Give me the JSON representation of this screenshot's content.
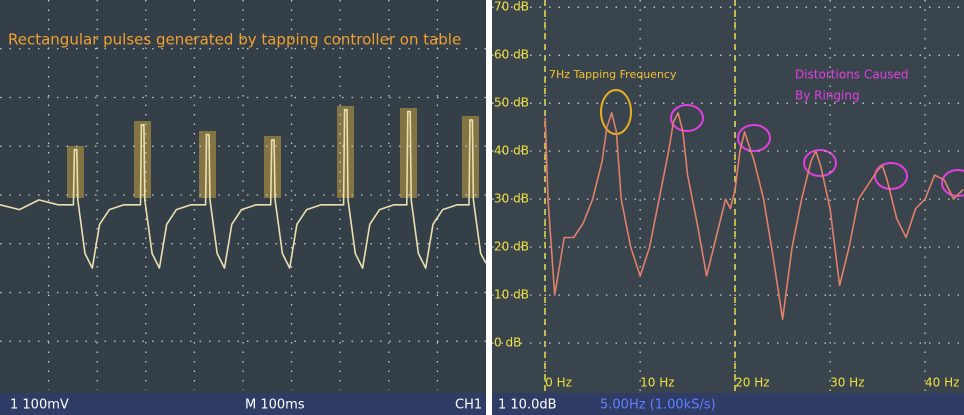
{
  "chart_data": [
    {
      "type": "line",
      "annotation": "Rectangular pulses generated by tapping controller on table",
      "footer": [
        "1  100mV",
        "M 100ms",
        "CH1"
      ],
      "xlim": [
        0,
        1000
      ],
      "ylim": [
        -400,
        400
      ],
      "series": [
        {
          "color": "#e8e0b0",
          "x": [
            0,
            40,
            80,
            120,
            151,
            153,
            158,
            160,
            175,
            190,
            205,
            225,
            255,
            289,
            291,
            296,
            298,
            313,
            328,
            343,
            363,
            393,
            423,
            425,
            430,
            432,
            447,
            462,
            477,
            497,
            527,
            557,
            559,
            564,
            566,
            581,
            596,
            611,
            631,
            661,
            707,
            709,
            714,
            716,
            731,
            746,
            761,
            781,
            811,
            837,
            839,
            844,
            846,
            861,
            876,
            891,
            911,
            941,
            965,
            967,
            972,
            974,
            989,
            1000
          ],
          "values": [
            -20,
            -30,
            -10,
            -20,
            -20,
            93,
            93,
            -10,
            -120,
            -150,
            -60,
            -30,
            -20,
            -20,
            144,
            144,
            -10,
            -120,
            -150,
            -60,
            -30,
            -20,
            -20,
            124,
            124,
            -10,
            -120,
            -150,
            -60,
            -30,
            -20,
            -20,
            113,
            113,
            -10,
            -120,
            -150,
            -60,
            -30,
            -20,
            -20,
            175,
            175,
            -10,
            -120,
            -150,
            -60,
            -30,
            -20,
            -20,
            171,
            171,
            -10,
            -120,
            -150,
            -60,
            -30,
            -20,
            -20,
            154,
            154,
            -10,
            -120,
            -140
          ]
        }
      ]
    },
    {
      "type": "line",
      "annotations": [
        "7Hz Tapping Frequency",
        "Distortions Caused",
        "By Ringing"
      ],
      "footer": [
        "1  10.0dB",
        "5.00Hz (1.00kS/s)"
      ],
      "xlim": [
        -5.6,
        44.1
      ],
      "ylim": [
        -10.4,
        71.5
      ],
      "xticks": [
        {
          "value": 0,
          "label": "0 Hz"
        },
        {
          "value": 10,
          "label": "10 Hz"
        },
        {
          "value": 20,
          "label": "20 Hz"
        },
        {
          "value": 30,
          "label": "30 Hz"
        },
        {
          "value": 40,
          "label": "40 Hz"
        }
      ],
      "yticks": [
        {
          "value": 0,
          "label": "0 dB"
        },
        {
          "value": 10,
          "label": "10 dB"
        },
        {
          "value": 20,
          "label": "20 dB"
        },
        {
          "value": 30,
          "label": "30 dB"
        },
        {
          "value": 40,
          "label": "40 dB"
        },
        {
          "value": 50,
          "label": "50 dB"
        },
        {
          "value": 60,
          "label": "60 dB"
        },
        {
          "value": 70,
          "label": "70 dB"
        }
      ],
      "series": [
        {
          "color": "#e0806a",
          "x": [
            0,
            0.3,
            1,
            2,
            3,
            4,
            5,
            6,
            6.5,
            7,
            7.5,
            8,
            9,
            10,
            11,
            12,
            13,
            13.5,
            14,
            14.5,
            15,
            16,
            17,
            18,
            19,
            19.5,
            20,
            20.5,
            21,
            22,
            23,
            24,
            25,
            26,
            27,
            28,
            28.5,
            29,
            30,
            31,
            32,
            33,
            34,
            35,
            35.5,
            36,
            37,
            38,
            39,
            40,
            41,
            42,
            43,
            44
          ],
          "values": [
            47,
            30,
            10,
            22,
            22,
            25,
            30,
            38,
            45,
            48,
            44,
            30,
            20,
            14,
            20,
            30,
            40,
            46,
            48,
            44,
            35,
            25,
            14,
            22,
            30,
            28,
            32,
            40,
            44,
            38,
            30,
            18,
            5,
            20,
            30,
            38,
            40,
            37,
            28,
            12,
            20,
            30,
            33,
            36,
            37,
            34,
            26,
            22,
            28,
            30,
            35,
            34,
            30,
            32
          ]
        }
      ]
    }
  ]
}
